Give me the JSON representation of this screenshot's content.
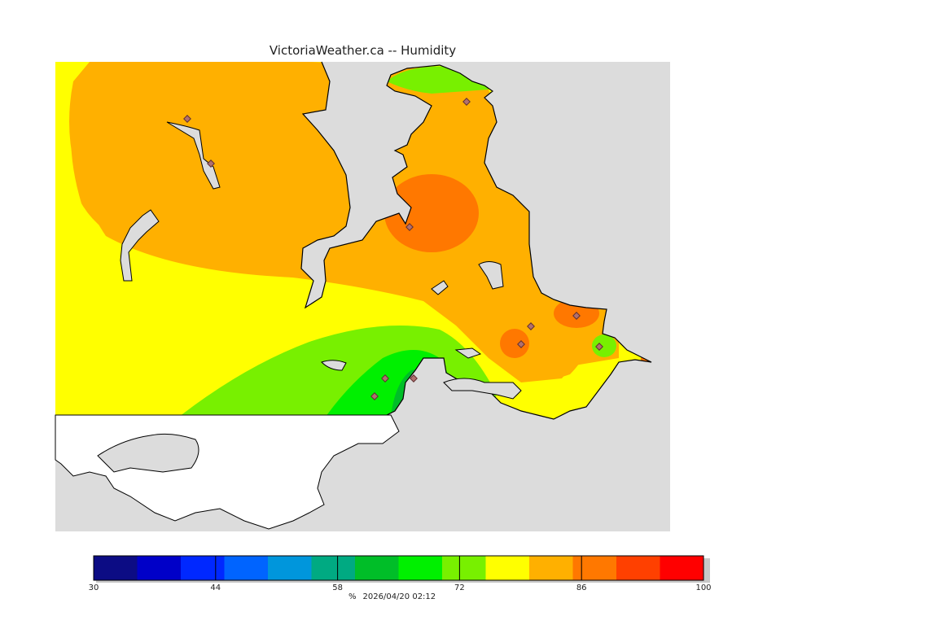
{
  "title": "VictoriaWeather.ca -- Humidity",
  "colors": {
    "water": "#dcdcdc",
    "land_outside": "#ffffff",
    "coast": "#000000",
    "station": "#b07070"
  },
  "legend": {
    "min": 30,
    "max": 100,
    "bins": [
      {
        "from": 30,
        "to": 35,
        "color": "#0c0c84"
      },
      {
        "from": 35,
        "to": 40,
        "color": "#0000c8"
      },
      {
        "from": 40,
        "to": 45,
        "color": "#0028ff"
      },
      {
        "from": 45,
        "to": 50,
        "color": "#0064ff"
      },
      {
        "from": 50,
        "to": 55,
        "color": "#0096dc"
      },
      {
        "from": 55,
        "to": 60,
        "color": "#00aa82"
      },
      {
        "from": 60,
        "to": 65,
        "color": "#00be28"
      },
      {
        "from": 65,
        "to": 70,
        "color": "#00f000"
      },
      {
        "from": 70,
        "to": 75,
        "color": "#78f000"
      },
      {
        "from": 75,
        "to": 80,
        "color": "#ffff00"
      },
      {
        "from": 80,
        "to": 85,
        "color": "#ffb000"
      },
      {
        "from": 85,
        "to": 90,
        "color": "#ff7800"
      },
      {
        "from": 90,
        "to": 95,
        "color": "#ff4000"
      },
      {
        "from": 95,
        "to": 100,
        "color": "#ff0000"
      }
    ],
    "ticks": [
      "30",
      "44",
      "58",
      "72",
      "86",
      "100"
    ],
    "unit": "%",
    "timestamp": "2026/04/20 02:12"
  }
}
